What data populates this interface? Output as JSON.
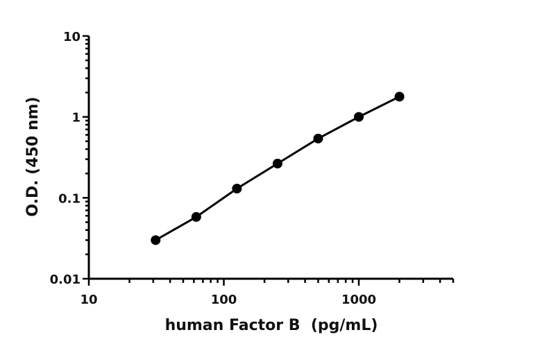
{
  "chart_data": {
    "type": "line",
    "title": "",
    "xlabel": "human Factor B  (pg/mL)",
    "ylabel": "O.D. (450 nm)",
    "x_scale": "log",
    "y_scale": "log",
    "xlim": [
      10,
      5000
    ],
    "ylim": [
      0.01,
      10
    ],
    "x_ticks": [
      "10",
      "100",
      "1000"
    ],
    "y_ticks": [
      "0.01",
      "0.1",
      "1",
      "10"
    ],
    "grid": false,
    "legend": "none",
    "color": "#000000",
    "series": [
      {
        "x": [
          31.25,
          62.5,
          125,
          250,
          500,
          1000,
          2000
        ],
        "y": [
          0.03,
          0.058,
          0.13,
          0.265,
          0.54,
          1.0,
          1.78
        ]
      }
    ]
  }
}
